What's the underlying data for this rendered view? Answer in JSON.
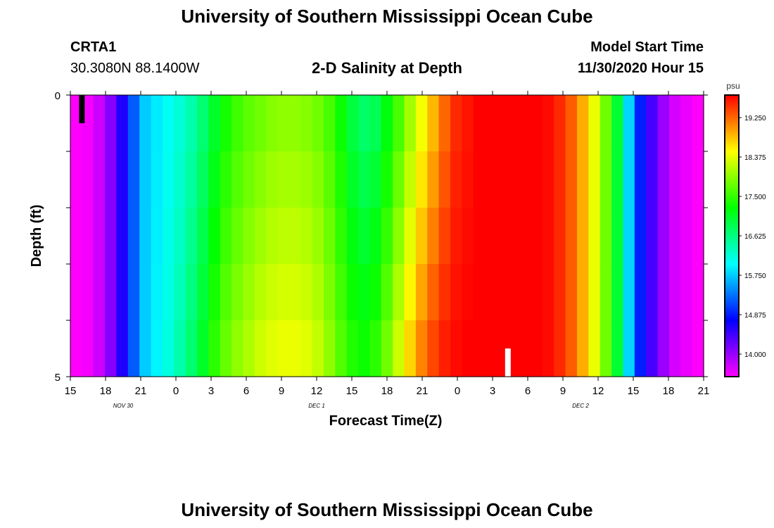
{
  "header": {
    "title": "University of Southern Mississippi Ocean Cube",
    "station_id": "CRTA1",
    "station_coords": "30.3080N 88.1400W",
    "chart_title": "2-D Salinity at Depth",
    "model_start_label": "Model Start Time",
    "model_start_value": "11/30/2020 Hour 15"
  },
  "footer": {
    "title": "University of Southern Mississippi Ocean Cube"
  },
  "chart_data": {
    "type": "heatmap",
    "title": "2-D Salinity at Depth",
    "xlabel": "Forecast Time(Z)",
    "ylabel": "Depth (ft)",
    "x_tick_labels": [
      "15",
      "18",
      "21",
      "0",
      "3",
      "6",
      "9",
      "12",
      "15",
      "18",
      "21",
      "0",
      "3",
      "6",
      "9",
      "12",
      "15",
      "18",
      "21"
    ],
    "date_labels": [
      {
        "text": "NOV  30",
        "tick_index": 1.5
      },
      {
        "text": "DEC  1",
        "tick_index": 7
      },
      {
        "text": "DEC  2",
        "tick_index": 14.5
      }
    ],
    "y_tick_labels": [
      "0",
      "5"
    ],
    "ylim": [
      0,
      5
    ],
    "y_inverted": true,
    "grid": false,
    "colorbar": {
      "unit": "psu",
      "min": 13.5,
      "max": 19.75,
      "tick_values": [
        14.0,
        14.875,
        15.75,
        16.625,
        17.5,
        18.375,
        19.25
      ],
      "tick_labels": [
        "14.000",
        "14.875",
        "15.750",
        "16.625",
        "17.500",
        "18.375",
        "19.250"
      ]
    },
    "x_hours": [
      0,
      1,
      2,
      3,
      4,
      5,
      6,
      7,
      8,
      9,
      10,
      11,
      12,
      13,
      14,
      15,
      16,
      17,
      18,
      19,
      20,
      21,
      22,
      23,
      24,
      25,
      26,
      27,
      28,
      29,
      30,
      31,
      32,
      33,
      34,
      35,
      36,
      37,
      38,
      39,
      40,
      41,
      42,
      43,
      44,
      45,
      46,
      47,
      48,
      49,
      50,
      51,
      52,
      53,
      54
    ],
    "salinity_surface": [
      13.5,
      13.55,
      13.75,
      14.1,
      14.6,
      15.2,
      15.75,
      15.9,
      16.05,
      16.2,
      16.4,
      16.7,
      17.05,
      17.35,
      17.55,
      17.7,
      17.8,
      17.9,
      17.95,
      17.95,
      17.9,
      17.8,
      17.6,
      17.3,
      16.95,
      16.75,
      16.85,
      17.2,
      17.6,
      18.05,
      18.45,
      18.85,
      19.25,
      19.55,
      19.65,
      19.75,
      19.75,
      19.75,
      19.75,
      19.75,
      19.75,
      19.7,
      19.55,
      19.3,
      18.9,
      18.4,
      17.8,
      17.0,
      15.8,
      14.9,
      14.4,
      14.0,
      13.7,
      13.6,
      13.5
    ],
    "salinity_bottom": [
      13.5,
      13.55,
      13.75,
      14.1,
      14.6,
      15.2,
      15.75,
      15.95,
      16.15,
      16.4,
      16.7,
      17.05,
      17.45,
      17.75,
      17.95,
      18.1,
      18.25,
      18.35,
      18.4,
      18.4,
      18.35,
      18.2,
      17.95,
      17.65,
      17.4,
      17.3,
      17.45,
      17.8,
      18.25,
      18.7,
      19.1,
      19.4,
      19.6,
      19.7,
      19.75,
      19.75,
      19.75,
      19.75,
      19.75,
      19.75,
      19.75,
      19.7,
      19.55,
      19.3,
      18.9,
      18.4,
      17.8,
      17.0,
      15.8,
      14.9,
      14.4,
      14.0,
      13.7,
      13.6,
      13.5
    ],
    "markers": [
      {
        "name": "surface-marker",
        "color": "#000000",
        "x_hour": 0.5,
        "depth_from": 0.0,
        "depth_to": 0.5
      },
      {
        "name": "bottom-marker",
        "color": "#ffffff",
        "x_hour": 37.5,
        "depth_from": 4.5,
        "depth_to": 5.0
      }
    ]
  }
}
